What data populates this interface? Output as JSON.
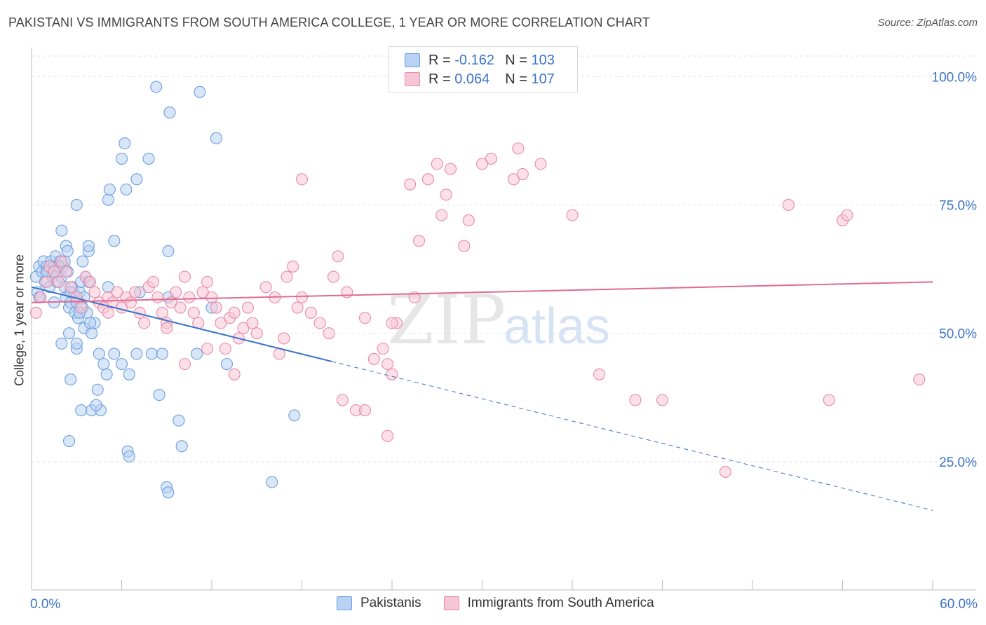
{
  "title": "PAKISTANI VS IMMIGRANTS FROM SOUTH AMERICA COLLEGE, 1 YEAR OR MORE CORRELATION CHART",
  "source": "Source: ZipAtlas.com",
  "legend": {
    "r_label": "R =",
    "n_label": "N =",
    "rows": [
      {
        "r": "-0.162",
        "n": "103",
        "color": "#6a9fe0",
        "fill": "#b9d2f3"
      },
      {
        "r": "0.064",
        "n": "107",
        "color": "#e88aaa",
        "fill": "#f7c6d6"
      }
    ]
  },
  "colors": {
    "blue": "#3b73c9",
    "pink": "#e06a94"
  },
  "chart_data": {
    "type": "scatter",
    "ylabel": "College, 1 year or more",
    "xlim": [
      0,
      60
    ],
    "ylim": [
      0,
      104
    ],
    "x_tick_labels": [
      "0.0%",
      "60.0%"
    ],
    "y_ticks": [
      25,
      50,
      75,
      100
    ],
    "y_tick_labels": [
      "25.0%",
      "50.0%",
      "75.0%",
      "100.0%"
    ],
    "grid": true,
    "watermark": "ZIPatlas",
    "series": [
      {
        "name": "Pakistanis",
        "color": "#6a9fe0",
        "trend": {
          "x0": 0,
          "y0": 59.0,
          "x1": 20,
          "y1": 44.5,
          "dash_to_x": 60,
          "dash_to_y": 15.5
        },
        "points": [
          [
            0.3,
            61
          ],
          [
            0.4,
            58
          ],
          [
            0.5,
            63
          ],
          [
            0.6,
            57
          ],
          [
            0.7,
            62
          ],
          [
            0.8,
            64
          ],
          [
            0.9,
            60
          ],
          [
            1.0,
            63
          ],
          [
            1.1,
            62
          ],
          [
            1.2,
            59
          ],
          [
            1.3,
            64
          ],
          [
            1.4,
            61
          ],
          [
            1.5,
            63
          ],
          [
            1.6,
            65
          ],
          [
            1.7,
            60
          ],
          [
            1.8,
            62
          ],
          [
            1.9,
            64
          ],
          [
            2.0,
            61
          ],
          [
            2.1,
            63
          ],
          [
            2.2,
            59
          ],
          [
            2.3,
            57
          ],
          [
            2.4,
            62
          ],
          [
            2.5,
            55
          ],
          [
            2.6,
            56
          ],
          [
            2.7,
            59
          ],
          [
            2.8,
            58
          ],
          [
            2.9,
            54
          ],
          [
            3.0,
            56
          ],
          [
            3.1,
            53
          ],
          [
            3.2,
            58
          ],
          [
            3.3,
            60
          ],
          [
            3.4,
            55
          ],
          [
            3.5,
            57
          ],
          [
            3.6,
            61
          ],
          [
            3.7,
            54
          ],
          [
            3.8,
            60
          ],
          [
            1.5,
            56
          ],
          [
            2.0,
            48
          ],
          [
            2.5,
            50
          ],
          [
            3.0,
            47
          ],
          [
            3.5,
            51
          ],
          [
            4.0,
            50
          ],
          [
            4.5,
            46
          ],
          [
            4.8,
            44
          ],
          [
            5.0,
            42
          ],
          [
            5.5,
            46
          ],
          [
            6.0,
            44
          ],
          [
            6.5,
            42
          ],
          [
            7.0,
            46
          ],
          [
            8.0,
            46
          ],
          [
            8.5,
            38
          ],
          [
            3.0,
            48
          ],
          [
            4.2,
            52
          ],
          [
            2.6,
            41
          ],
          [
            4.4,
            39
          ],
          [
            3.3,
            35
          ],
          [
            4.0,
            35
          ],
          [
            4.6,
            35
          ],
          [
            4.3,
            36
          ],
          [
            6.4,
            27
          ],
          [
            6.5,
            26
          ],
          [
            9.0,
            20
          ],
          [
            9.1,
            19
          ],
          [
            16.0,
            21
          ],
          [
            10.0,
            28
          ],
          [
            9.8,
            33
          ],
          [
            2.5,
            29
          ],
          [
            11.0,
            46
          ],
          [
            12.0,
            55
          ],
          [
            13.0,
            44
          ],
          [
            17.5,
            34
          ],
          [
            2.0,
            70
          ],
          [
            2.3,
            67
          ],
          [
            3.0,
            75
          ],
          [
            3.8,
            66
          ],
          [
            3.8,
            67
          ],
          [
            5.1,
            76
          ],
          [
            5.2,
            78
          ],
          [
            5.5,
            68
          ],
          [
            6.0,
            84
          ],
          [
            6.2,
            87
          ],
          [
            6.3,
            78
          ],
          [
            7.0,
            80
          ],
          [
            7.8,
            84
          ],
          [
            8.3,
            98
          ],
          [
            9.1,
            66
          ],
          [
            9.2,
            93
          ],
          [
            11.2,
            97
          ],
          [
            12.3,
            88
          ],
          [
            7.2,
            58
          ],
          [
            5.1,
            59
          ],
          [
            9.1,
            57
          ],
          [
            1.5,
            62
          ],
          [
            2.2,
            64
          ],
          [
            2.6,
            58
          ],
          [
            3.2,
            54
          ],
          [
            1.0,
            62
          ],
          [
            1.8,
            63
          ],
          [
            2.4,
            66
          ],
          [
            3.4,
            64
          ],
          [
            3.9,
            52
          ],
          [
            8.7,
            46
          ],
          [
            0.5,
            57
          ]
        ]
      },
      {
        "name": "Immigrants from South America",
        "color": "#e88aaa",
        "trend": {
          "x0": 0,
          "y0": 56.0,
          "x1": 60,
          "y1": 60.0
        },
        "points": [
          [
            0.3,
            54
          ],
          [
            0.6,
            57
          ],
          [
            1.0,
            60
          ],
          [
            1.2,
            63
          ],
          [
            1.5,
            62
          ],
          [
            1.8,
            60
          ],
          [
            2.0,
            64
          ],
          [
            2.3,
            62
          ],
          [
            2.6,
            59
          ],
          [
            3.0,
            57
          ],
          [
            3.3,
            55
          ],
          [
            3.6,
            61
          ],
          [
            3.9,
            60
          ],
          [
            4.2,
            58
          ],
          [
            4.5,
            56
          ],
          [
            4.8,
            55
          ],
          [
            5.1,
            57
          ],
          [
            5.4,
            56
          ],
          [
            5.7,
            58
          ],
          [
            6.0,
            55
          ],
          [
            6.3,
            57
          ],
          [
            6.6,
            56
          ],
          [
            6.9,
            58
          ],
          [
            7.2,
            54
          ],
          [
            7.5,
            52
          ],
          [
            7.8,
            59
          ],
          [
            8.1,
            60
          ],
          [
            8.4,
            57
          ],
          [
            8.7,
            54
          ],
          [
            9.0,
            52
          ],
          [
            9.3,
            56
          ],
          [
            9.6,
            58
          ],
          [
            9.9,
            55
          ],
          [
            10.2,
            61
          ],
          [
            10.5,
            57
          ],
          [
            10.8,
            54
          ],
          [
            11.1,
            52
          ],
          [
            11.4,
            58
          ],
          [
            11.7,
            60
          ],
          [
            12.0,
            57
          ],
          [
            12.3,
            55
          ],
          [
            12.6,
            52
          ],
          [
            12.9,
            47
          ],
          [
            13.2,
            53
          ],
          [
            13.5,
            54
          ],
          [
            13.8,
            49
          ],
          [
            14.1,
            51
          ],
          [
            14.4,
            55
          ],
          [
            14.7,
            52
          ],
          [
            15.0,
            50
          ],
          [
            15.6,
            59
          ],
          [
            16.2,
            57
          ],
          [
            16.8,
            49
          ],
          [
            17.0,
            61
          ],
          [
            17.4,
            63
          ],
          [
            17.7,
            55
          ],
          [
            18.0,
            57
          ],
          [
            18.6,
            54
          ],
          [
            19.2,
            52
          ],
          [
            19.8,
            50
          ],
          [
            20.1,
            61
          ],
          [
            20.4,
            65
          ],
          [
            20.7,
            37
          ],
          [
            21.0,
            58
          ],
          [
            21.6,
            35
          ],
          [
            22.2,
            53
          ],
          [
            22.8,
            45
          ],
          [
            23.4,
            47
          ],
          [
            23.7,
            44
          ],
          [
            24.0,
            42
          ],
          [
            24.3,
            52
          ],
          [
            25.2,
            79
          ],
          [
            25.5,
            57
          ],
          [
            25.8,
            68
          ],
          [
            26.4,
            80
          ],
          [
            27.0,
            83
          ],
          [
            27.3,
            73
          ],
          [
            27.6,
            77
          ],
          [
            27.9,
            82
          ],
          [
            28.8,
            67
          ],
          [
            29.1,
            72
          ],
          [
            30.0,
            83
          ],
          [
            30.6,
            84
          ],
          [
            32.1,
            80
          ],
          [
            32.4,
            86
          ],
          [
            32.7,
            81
          ],
          [
            33.9,
            83
          ],
          [
            36.0,
            73
          ],
          [
            37.8,
            42
          ],
          [
            40.2,
            37
          ],
          [
            42.0,
            37
          ],
          [
            46.2,
            23
          ],
          [
            50.4,
            75
          ],
          [
            53.1,
            37
          ],
          [
            54.0,
            72
          ],
          [
            54.3,
            73
          ],
          [
            59.1,
            41
          ],
          [
            18.0,
            80
          ],
          [
            23.7,
            30
          ],
          [
            22.2,
            35
          ],
          [
            16.5,
            46
          ],
          [
            13.5,
            42
          ],
          [
            10.2,
            44
          ],
          [
            9.0,
            51
          ],
          [
            11.7,
            47
          ],
          [
            5.1,
            54
          ],
          [
            24.0,
            52
          ]
        ]
      }
    ]
  }
}
